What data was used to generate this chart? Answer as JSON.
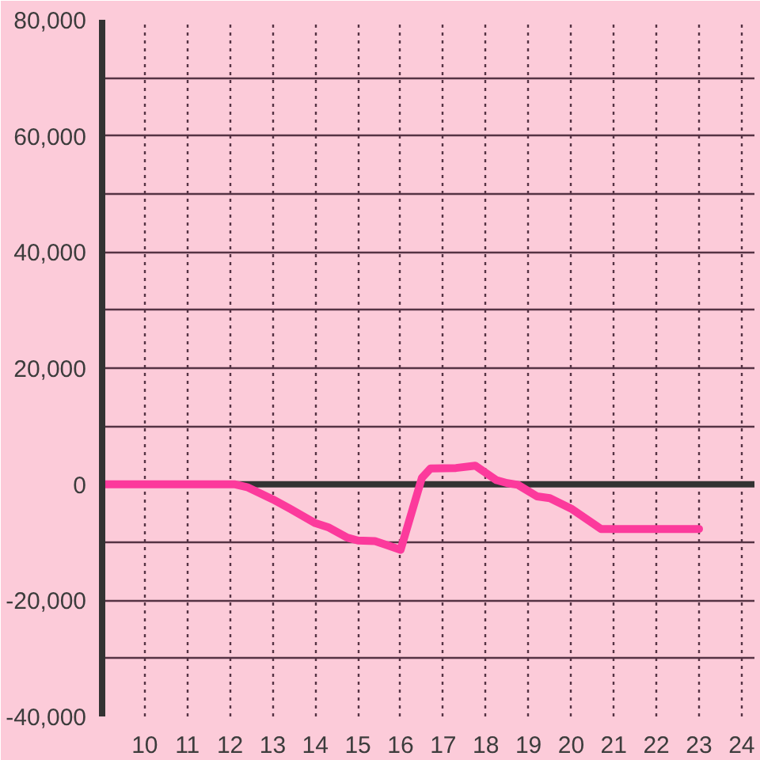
{
  "chart_data": {
    "type": "line",
    "x": [
      9,
      12,
      12.1,
      12.4,
      13,
      13.4,
      14,
      14.3,
      14.75,
      15,
      15.4,
      15.65,
      16,
      16.5,
      16.7,
      17.3,
      17.75,
      18.25,
      18.5,
      18.75,
      19.2,
      19.5,
      20,
      20.7,
      23
    ],
    "series": [
      {
        "color": "#fc3a9c",
        "values": [
          0,
          0,
          0,
          -500,
          -2600,
          -4200,
          -6700,
          -7400,
          -9200,
          -9700,
          -9800,
          -10400,
          -11300,
          1100,
          2700,
          2800,
          3200,
          700,
          200,
          -100,
          -2100,
          -2400,
          -4200,
          -7700,
          -7700
        ]
      }
    ],
    "xlim": [
      9,
      24.3
    ],
    "xticks": [
      10,
      11,
      12,
      13,
      14,
      15,
      16,
      17,
      18,
      19,
      20,
      21,
      22,
      23,
      24
    ],
    "ylim": [
      -40000,
      80000
    ],
    "yticks": [
      {
        "value": -40000,
        "label": "-40,000"
      },
      {
        "value": -30000,
        "label": null
      },
      {
        "value": -20000,
        "label": "-20,000"
      },
      {
        "value": -10000,
        "label": null
      },
      0,
      {
        "value": 10000,
        "label": null
      },
      {
        "value": 20000,
        "label": "20,000"
      },
      {
        "value": 30000,
        "label": null
      },
      {
        "value": 40000,
        "label": "40,000"
      },
      {
        "value": 50000,
        "label": null
      },
      {
        "value": 60000,
        "label": "60,000"
      },
      {
        "value": 70000,
        "label": null
      },
      {
        "value": 80000,
        "label": "80,000"
      }
    ],
    "ref_lines": [
      {
        "axis": "y",
        "value": 0,
        "color": "#333333"
      }
    ],
    "grid": true,
    "line_style": "solid"
  }
}
